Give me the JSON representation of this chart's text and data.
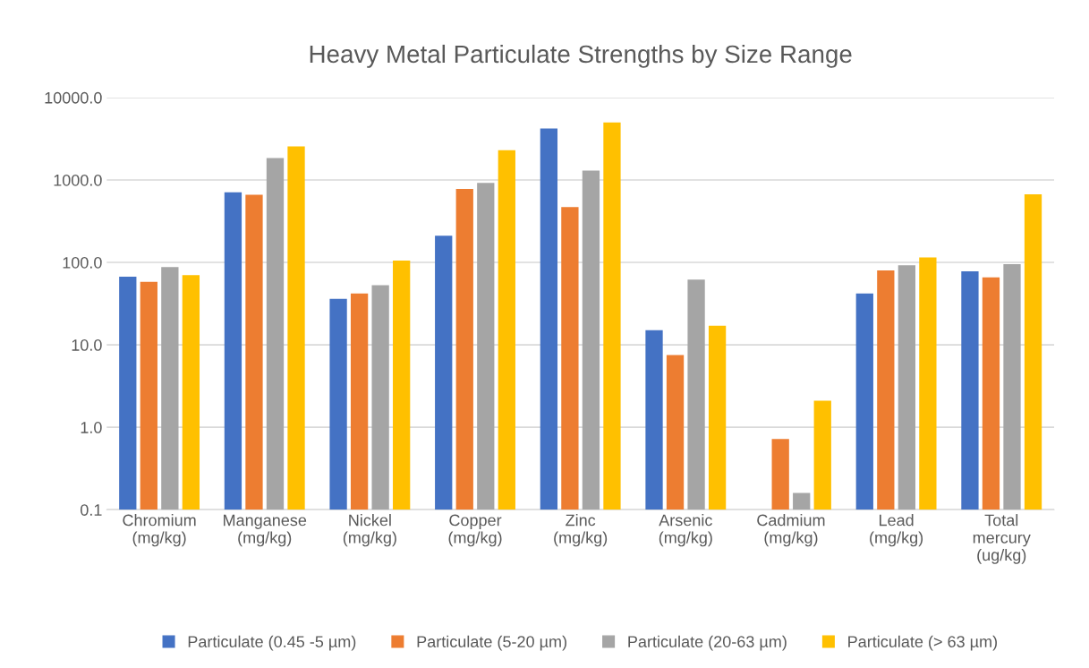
{
  "chart_data": {
    "type": "bar",
    "title": "Heavy Metal Particulate Strengths by Size Range",
    "categories": [
      "Chromium\n(mg/kg)",
      "Manganese\n(mg/kg)",
      "Nickel\n(mg/kg)",
      "Copper\n(mg/kg)",
      "Zinc\n(mg/kg)",
      "Arsenic\n(mg/kg)",
      "Cadmium\n(mg/kg)",
      "Lead\n(mg/kg)",
      "Total\nmercury\n(ug/kg)"
    ],
    "series": [
      {
        "name": "Particulate (0.45 -5 µm)",
        "color": "#4472c4",
        "values": [
          67,
          710,
          36,
          210,
          4200,
          15,
          null,
          42,
          78
        ]
      },
      {
        "name": "Particulate (5-20 µm)",
        "color": "#ed7d31",
        "values": [
          58,
          660,
          42,
          780,
          470,
          7.5,
          0.72,
          80,
          66
        ]
      },
      {
        "name": "Particulate (20-63 µm)",
        "color": "#a5a5a5",
        "values": [
          88,
          1850,
          53,
          920,
          1300,
          62,
          0.16,
          92,
          95
        ]
      },
      {
        "name": "Particulate (> 63 µm)",
        "color": "#ffc000",
        "values": [
          70,
          2550,
          105,
          2300,
          5000,
          17,
          2.1,
          115,
          670
        ]
      }
    ],
    "log": true,
    "ylim": [
      0.1,
      10000
    ],
    "yticks": [
      {
        "value": 0.1,
        "label": "0.1"
      },
      {
        "value": 1,
        "label": "1.0"
      },
      {
        "value": 10,
        "label": "10.0"
      },
      {
        "value": 100,
        "label": "100.0"
      },
      {
        "value": 1000,
        "label": "1000.0"
      },
      {
        "value": 10000,
        "label": "10000.0"
      }
    ],
    "grid": "y",
    "legend": "bottom"
  }
}
